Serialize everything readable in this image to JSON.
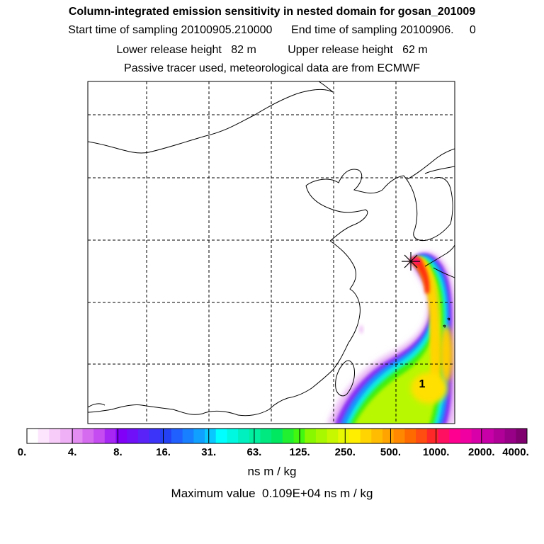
{
  "chart_data": {
    "type": "heatmap",
    "title": "Column-integrated emission sensitivity in nested domain for gosan_201009",
    "subtitle_lines": [
      "Start time of sampling 20100905.210000      End time of sampling 20100906.     0",
      "Lower release height   82 m          Upper release height   62 m",
      "Passive tracer used, meteorological data are from ECMWF"
    ],
    "colorbar": {
      "tick_labels": [
        "0.",
        "4.",
        "8.",
        "16.",
        "31.",
        "63.",
        "125.",
        "250.",
        "500.",
        "1000.",
        "2000.",
        "4000."
      ],
      "units": "ns m / kg",
      "colors": [
        "#ffffff",
        "#fde6fd",
        "#f7ccf9",
        "#f0b0f5",
        "#e38cf2",
        "#d56cf0",
        "#c44cf0",
        "#a626f4",
        "#8000f8",
        "#7010f8",
        "#5a24f8",
        "#3c34f8",
        "#2442f4",
        "#2060ff",
        "#1880ff",
        "#10a0ff",
        "#08c8ff",
        "#00ffff",
        "#00f8e0",
        "#00f0c0",
        "#00f0a0",
        "#00e880",
        "#00e860",
        "#20f030",
        "#40f810",
        "#88f800",
        "#a8f800",
        "#c8f800",
        "#e8f800",
        "#ffee00",
        "#ffd400",
        "#ffbc00",
        "#ffa400",
        "#ff8800",
        "#ff6a00",
        "#ff4c10",
        "#ff2828",
        "#ff1060",
        "#ff0090",
        "#f000a0",
        "#d800a8",
        "#c800a8",
        "#b00098",
        "#980088",
        "#800070"
      ]
    },
    "receptor_marker": "*",
    "maximum_label": "1",
    "maximum_value_text": "Maximum value  0.109E+04 ns m / kg"
  }
}
